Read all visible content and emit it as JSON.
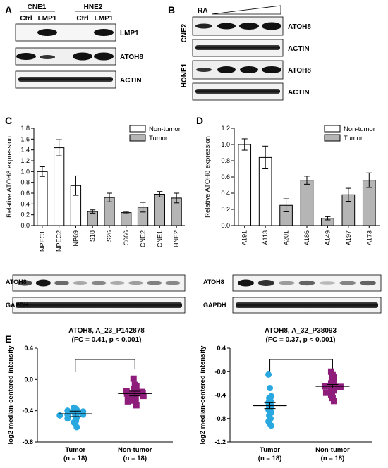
{
  "panels": {
    "A": {
      "letter": "A",
      "groups": [
        "CNE1",
        "HNE2"
      ],
      "lanes": [
        "Ctrl",
        "LMP1",
        "Ctrl",
        "LMP1"
      ],
      "blots": [
        "LMP1",
        "ATOH8",
        "ACTIN"
      ]
    },
    "B": {
      "letter": "B",
      "treatment": "RA",
      "cell_lines": [
        "CNE2",
        "HONE1"
      ],
      "blots": [
        "ATOH8",
        "ACTIN",
        "ATOH8",
        "ACTIN"
      ]
    },
    "C": {
      "letter": "C",
      "blot_labels": [
        "ATOH8",
        "GAPDH"
      ]
    },
    "D": {
      "letter": "D",
      "blot_labels": [
        "ATOH8",
        "GAPDH"
      ]
    },
    "E": {
      "letter": "E"
    }
  },
  "chart_data": [
    {
      "id": "C",
      "type": "bar",
      "ylabel": "Relative ATOH8 expression",
      "ylim": [
        0,
        1.8
      ],
      "yticks": [
        "0.0",
        "0.2",
        "0.4",
        "0.6",
        "0.8",
        "1.0",
        "1.2",
        "1.4",
        "1.6",
        "1.8"
      ],
      "legend": [
        "Non-tumor",
        "Tumor"
      ],
      "legend_position": "top-right",
      "categories": [
        "NPEC1",
        "NPEC2",
        "NP69",
        "S18",
        "S26",
        "C666",
        "CNE2",
        "CNE1",
        "HNE2"
      ],
      "groups": [
        "Non-tumor",
        "Non-tumor",
        "Non-tumor",
        "Tumor",
        "Tumor",
        "Tumor",
        "Tumor",
        "Tumor",
        "Tumor"
      ],
      "values": [
        1.0,
        1.44,
        0.74,
        0.26,
        0.52,
        0.24,
        0.34,
        0.58,
        0.51
      ],
      "errors": [
        0.09,
        0.15,
        0.18,
        0.03,
        0.08,
        0.02,
        0.09,
        0.05,
        0.09
      ]
    },
    {
      "id": "D",
      "type": "bar",
      "ylabel": "Relative ATOH8 expression",
      "ylim": [
        0,
        1.2
      ],
      "yticks": [
        "0.0",
        "0.2",
        "0.4",
        "0.6",
        "0.8",
        "1.0",
        "1.2"
      ],
      "legend": [
        "Non-tumor",
        "Tumor"
      ],
      "legend_position": "top-right",
      "categories": [
        "A191",
        "A113",
        "A201",
        "A186",
        "A149",
        "A197",
        "A173"
      ],
      "groups": [
        "Non-tumor",
        "Non-tumor",
        "Tumor",
        "Tumor",
        "Tumor",
        "Tumor",
        "Tumor"
      ],
      "values": [
        1.0,
        0.84,
        0.25,
        0.56,
        0.09,
        0.38,
        0.56
      ],
      "errors": [
        0.07,
        0.14,
        0.08,
        0.05,
        0.02,
        0.08,
        0.09
      ]
    },
    {
      "id": "E1",
      "type": "scatter",
      "title": "ATOH8, A_23_P142878",
      "subtitle": "(FC = 0.41, p < 0.001)",
      "ylabel": "log2 median-centered intensity",
      "ylim": [
        -0.8,
        0.4
      ],
      "yticks": [
        "0.4",
        "0.0",
        "-0.4",
        "-0.8"
      ],
      "categories": [
        "Tumor\n(n = 18)",
        "Non-tumor\n(n = 18)"
      ],
      "category_labels": [
        [
          "Tumor",
          "(n = 18)"
        ],
        [
          "Non-tumor",
          "(n = 18)"
        ]
      ],
      "series": [
        {
          "name": "Tumor",
          "shape": "circle",
          "color": "#29a8e0",
          "mean": -0.44,
          "sem": 0.035,
          "values": [
            -0.36,
            -0.37,
            -0.39,
            -0.4,
            -0.41,
            -0.42,
            -0.43,
            -0.44,
            -0.45,
            -0.45,
            -0.46,
            -0.47,
            -0.49,
            -0.5,
            -0.53,
            -0.55,
            -0.57,
            -0.61
          ]
        },
        {
          "name": "Non-tumor",
          "shape": "square",
          "color": "#8e1c7a",
          "mean": -0.18,
          "sem": 0.03,
          "values": [
            0.01,
            -0.07,
            -0.09,
            -0.12,
            -0.14,
            -0.15,
            -0.16,
            -0.17,
            -0.18,
            -0.18,
            -0.19,
            -0.2,
            -0.21,
            -0.23,
            -0.25,
            -0.27,
            -0.28,
            -0.33
          ]
        }
      ]
    },
    {
      "id": "E2",
      "type": "scatter",
      "title": "ATOH8, A_32_P38093",
      "subtitle": "(FC = 0.37, p < 0.001)",
      "ylabel": "log2 median-centered intensity",
      "ylim": [
        -1.2,
        0.4
      ],
      "yticks": [
        "0.4",
        "-0.0",
        "-0.4",
        "-0.8",
        "-1.2"
      ],
      "categories": [
        "Tumor\n(n = 18)",
        "Non-tumor\n(n = 18)"
      ],
      "category_labels": [
        [
          "Tumor",
          "(n = 18)"
        ],
        [
          "Non-tumor",
          "(n = 18)"
        ]
      ],
      "series": [
        {
          "name": "Tumor",
          "shape": "circle",
          "color": "#29a8e0",
          "mean": -0.58,
          "sem": 0.05,
          "values": [
            -0.05,
            -0.28,
            -0.42,
            -0.45,
            -0.5,
            -0.53,
            -0.55,
            -0.58,
            -0.6,
            -0.62,
            -0.65,
            -0.68,
            -0.7,
            -0.75,
            -0.8,
            -0.85,
            -0.9,
            -0.92
          ]
        },
        {
          "name": "Non-tumor",
          "shape": "square",
          "color": "#8e1c7a",
          "mean": -0.25,
          "sem": 0.03,
          "values": [
            0.0,
            -0.06,
            -0.1,
            -0.14,
            -0.17,
            -0.2,
            -0.22,
            -0.24,
            -0.25,
            -0.26,
            -0.28,
            -0.3,
            -0.32,
            -0.34,
            -0.36,
            -0.4,
            -0.45,
            -0.5
          ]
        }
      ]
    }
  ],
  "colors": {
    "non_tumor_bar": "#ffffff",
    "tumor_bar": "#b5b5b5",
    "tumor_point": "#29a8e0",
    "non_tumor_point": "#8e1c7a"
  }
}
